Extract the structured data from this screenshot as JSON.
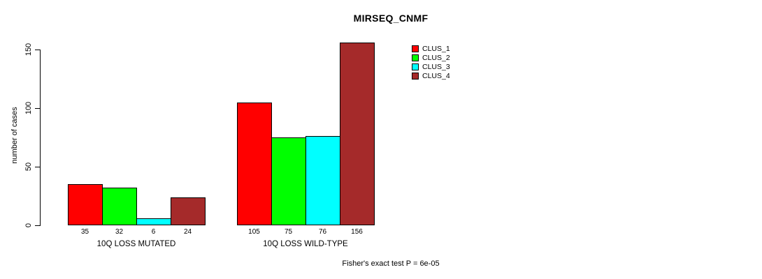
{
  "chart_data": {
    "type": "bar",
    "title": "MIRSEQ_CNMF",
    "ylabel": "number of cases",
    "xlabel": "",
    "ylim": [
      0,
      150
    ],
    "yticks": [
      0,
      50,
      100,
      150
    ],
    "grid": false,
    "categories": [
      "10Q LOSS MUTATED",
      "10Q LOSS WILD-TYPE"
    ],
    "series": [
      {
        "name": "CLUS_1",
        "color": "#ff0000",
        "values": [
          35,
          105
        ]
      },
      {
        "name": "CLUS_2",
        "color": "#00ff00",
        "values": [
          32,
          75
        ]
      },
      {
        "name": "CLUS_3",
        "color": "#00ffff",
        "values": [
          6,
          76
        ]
      },
      {
        "name": "CLUS_4",
        "color": "#a52a2a",
        "values": [
          24,
          156
        ]
      }
    ],
    "bar_value_labels": [
      [
        "35",
        "32",
        "6",
        "24"
      ],
      [
        "105",
        "75",
        "76",
        "156"
      ]
    ],
    "legend_position": "top-right",
    "annotation": "Fisher's exact test P = 6e-05",
    "axis_color": "#000000",
    "bar_border_color": "#000000"
  }
}
